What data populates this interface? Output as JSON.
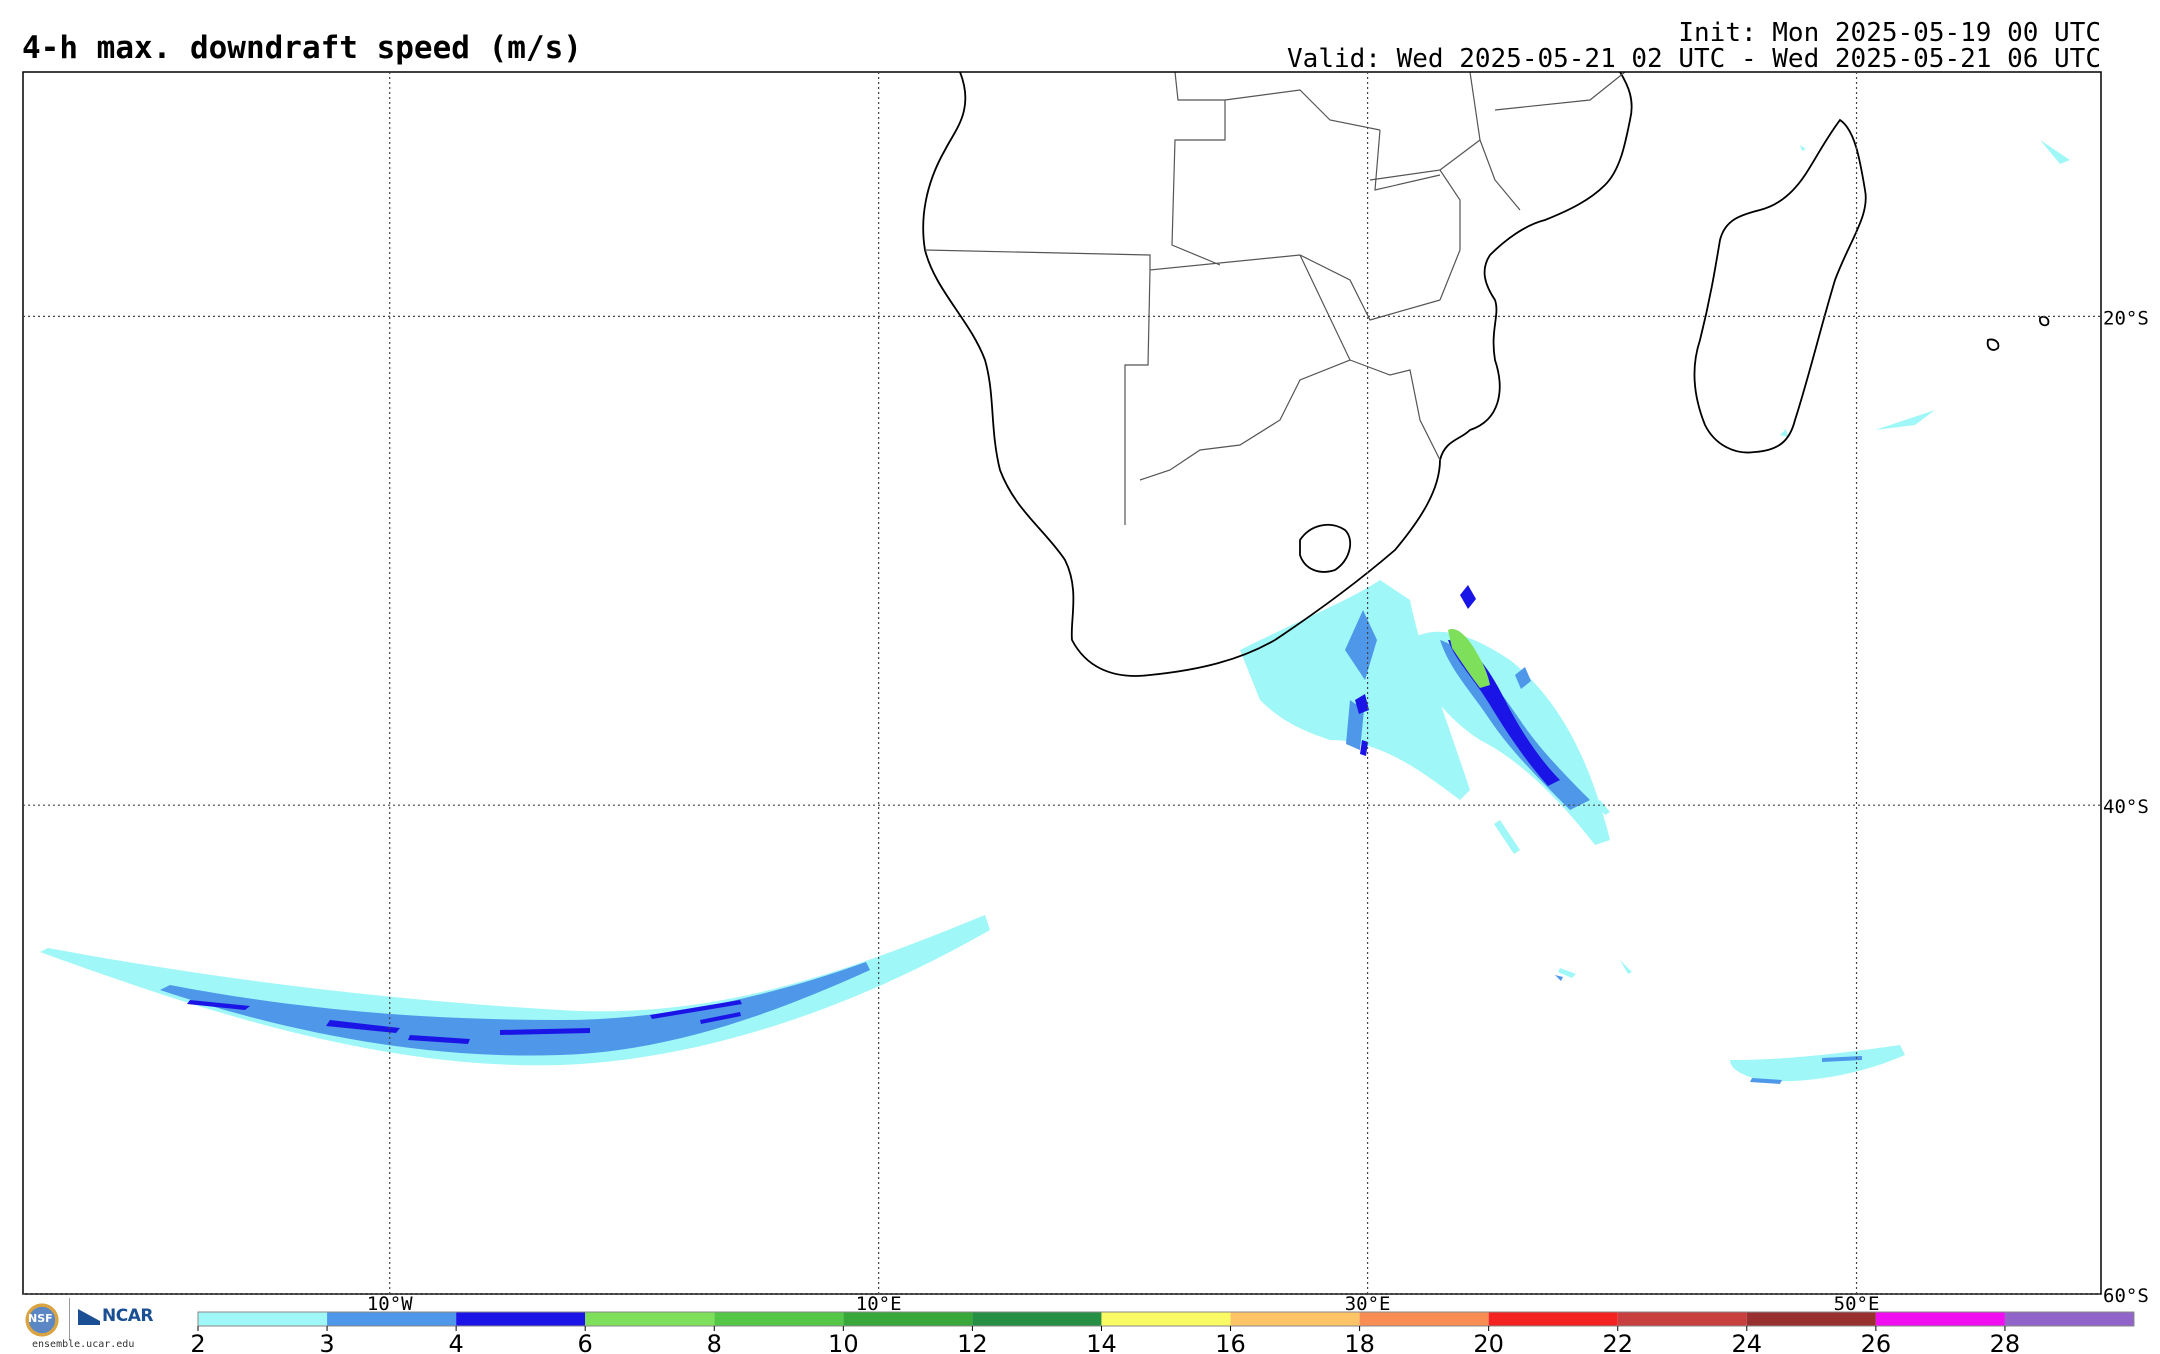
{
  "header": {
    "title": "4-h max. downdraft speed (m/s)",
    "init": "Init: Mon 2025-05-19 00 UTC",
    "valid": "Valid: Wed 2025-05-21 02 UTC - Wed 2025-05-21 06 UTC"
  },
  "map": {
    "lon_range": [
      -25,
      60
    ],
    "lat_range": [
      -60,
      -10
    ],
    "grid_lons": [
      {
        "value": -10,
        "label": "10°W"
      },
      {
        "value": 10,
        "label": "10°E"
      },
      {
        "value": 30,
        "label": "30°E"
      },
      {
        "value": 50,
        "label": "50°E"
      }
    ],
    "grid_lats": [
      {
        "value": -20,
        "label": "20°S"
      },
      {
        "value": -40,
        "label": "40°S"
      },
      {
        "value": -60,
        "label": "60°S"
      }
    ],
    "coastline_color": "#000000",
    "border_color": "#555555"
  },
  "colorbar": {
    "units": "m/s",
    "levels": [
      "2",
      "3",
      "4",
      "6",
      "8",
      "10",
      "12",
      "14",
      "16",
      "18",
      "20",
      "22",
      "24",
      "26",
      "28"
    ],
    "colors": [
      "#a0f7f7",
      "#4e97e9",
      "#1b14e6",
      "#7ee05a",
      "#55c747",
      "#38a83b",
      "#259043",
      "#fafa64",
      "#fcc466",
      "#f98d53",
      "#f52222",
      "#c73f3f",
      "#993030",
      "#f00ef0",
      "#9064c8"
    ]
  },
  "logos": {
    "nsf": "NSF",
    "ncar": "NCAR",
    "url": "ensemble.ucar.edu"
  }
}
